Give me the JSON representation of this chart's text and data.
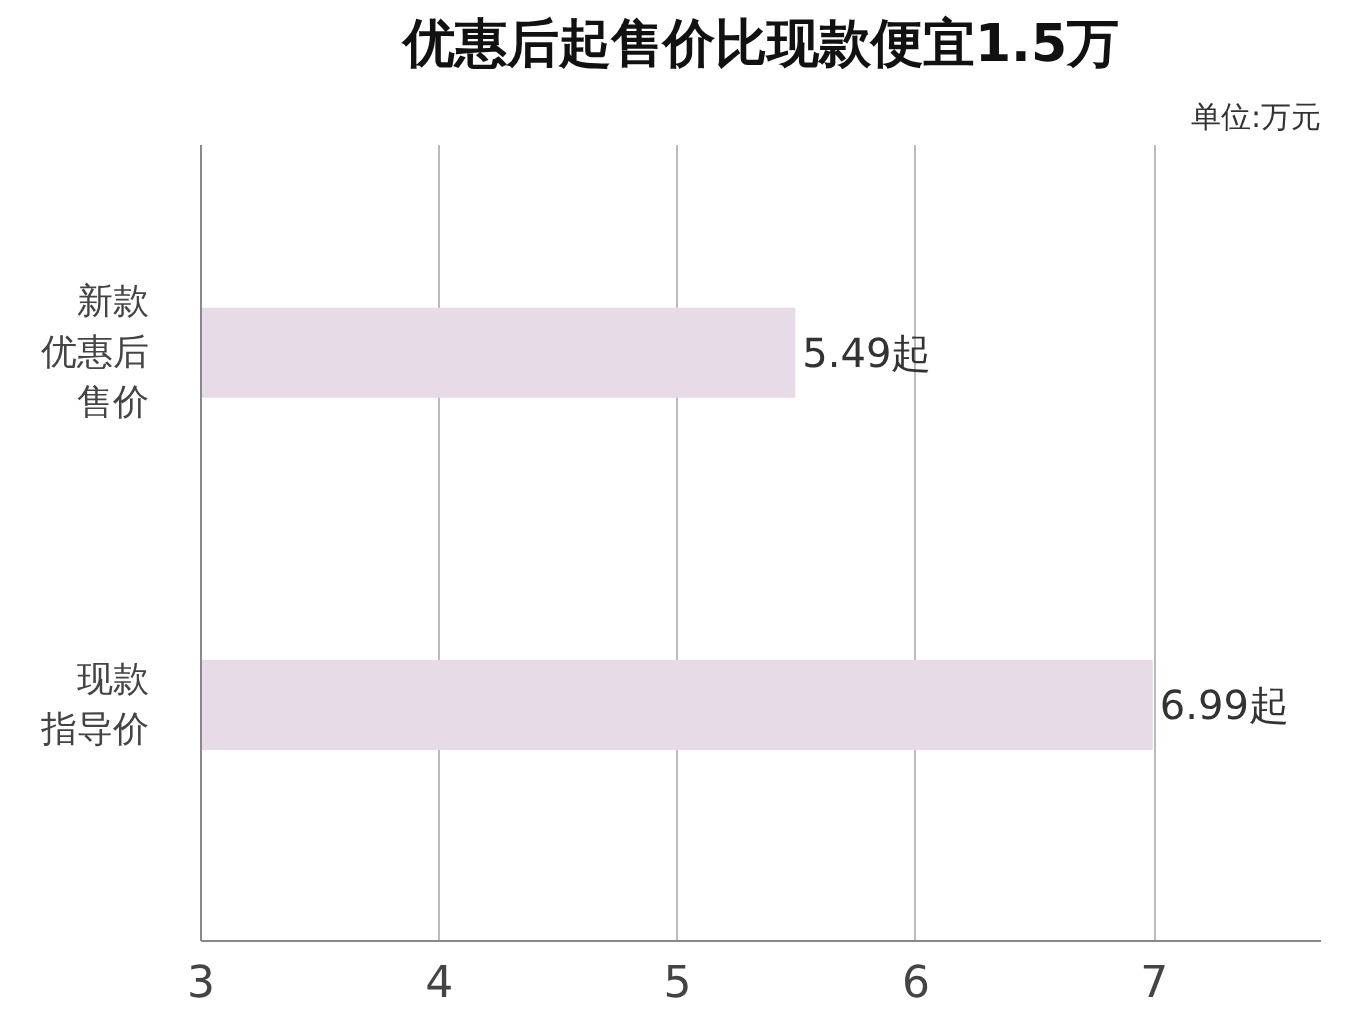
{
  "chart_data": {
    "type": "bar",
    "orientation": "horizontal",
    "title": "优惠后起售价比现款便宜1.5万",
    "annotations": [
      "单位:万元"
    ],
    "categories": [
      "新款优惠后售价",
      "现款指导价"
    ],
    "values": [
      5.49,
      6.99
    ],
    "value_labels": [
      "5.49起",
      "6.99起"
    ],
    "color": "#e6dbe6",
    "xlim": [
      3,
      7.7
    ],
    "xticks": [
      3,
      4,
      5,
      6,
      7
    ],
    "grid": "x"
  }
}
